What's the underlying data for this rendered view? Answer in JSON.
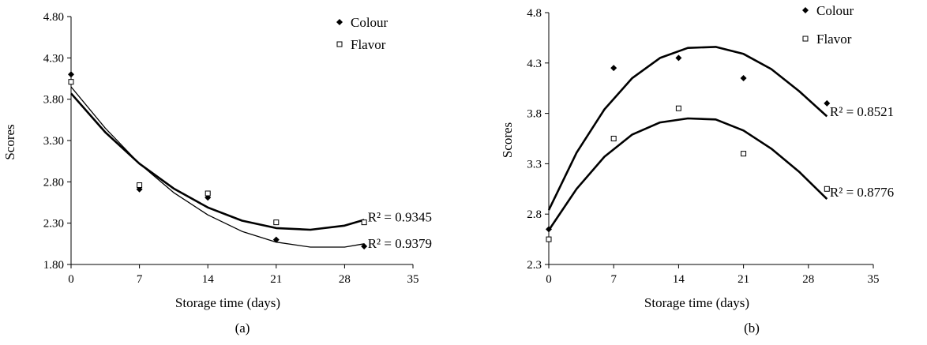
{
  "chart_data": [
    {
      "type": "scatter",
      "panel_label": "(a)",
      "xlabel": "Storage time (days)",
      "ylabel": "Scores",
      "xlim": [
        0,
        35
      ],
      "ylim": [
        1.8,
        4.8
      ],
      "xticks": [
        "0",
        "7",
        "14",
        "21",
        "28",
        "35"
      ],
      "yticks": [
        "1.80",
        "2.30",
        "2.80",
        "3.30",
        "3.80",
        "4.30",
        "4.80"
      ],
      "legend_position": "top-right",
      "grid": false,
      "series": [
        {
          "name": "Colour",
          "marker": "diamond",
          "x": [
            0,
            7,
            14,
            21,
            30
          ],
          "y": [
            4.1,
            2.71,
            2.61,
            2.1,
            2.02
          ],
          "fit": {
            "type": "polynomial",
            "x": [
              0,
              3.5,
              7,
              10.5,
              14,
              17.5,
              21,
              24.5,
              28,
              30
            ],
            "y": [
              3.95,
              3.45,
              3.02,
              2.67,
              2.4,
              2.2,
              2.07,
              2.01,
              2.01,
              2.05
            ]
          }
        },
        {
          "name": "Flavor",
          "marker": "square",
          "x": [
            0,
            7,
            14,
            21,
            30
          ],
          "y": [
            4.01,
            2.76,
            2.66,
            2.31,
            2.31
          ],
          "fit": {
            "type": "polynomial",
            "x": [
              0,
              3.5,
              7,
              10.5,
              14,
              17.5,
              21,
              24.5,
              28,
              30
            ],
            "y": [
              3.87,
              3.4,
              3.02,
              2.72,
              2.49,
              2.33,
              2.24,
              2.22,
              2.27,
              2.34
            ]
          }
        }
      ],
      "annotations": [
        {
          "text": "R² = 0.9345",
          "data_x": 31.5,
          "data_y": 2.38
        },
        {
          "text": "R² = 0.9379",
          "data_x": 31.5,
          "data_y": 2.06
        }
      ]
    },
    {
      "type": "scatter",
      "panel_label": "(b)",
      "xlabel": "Storage time (days)",
      "ylabel": "Scores",
      "xlim": [
        0,
        35
      ],
      "ylim": [
        2.3,
        4.8
      ],
      "xticks": [
        "0",
        "7",
        "14",
        "21",
        "28",
        "35"
      ],
      "yticks": [
        "2.3",
        "2.8",
        "3.3",
        "3.8",
        "4.3",
        "4.8"
      ],
      "legend_position": "top-right",
      "grid": false,
      "series": [
        {
          "name": "Colour",
          "marker": "diamond",
          "x": [
            0,
            7,
            14,
            21,
            30
          ],
          "y": [
            2.65,
            4.25,
            4.35,
            4.15,
            3.9
          ],
          "fit": {
            "type": "polynomial",
            "x": [
              0,
              3,
              6,
              9,
              12,
              15,
              18,
              21,
              24,
              27,
              30
            ],
            "y": [
              2.84,
              3.41,
              3.84,
              4.15,
              4.35,
              4.45,
              4.46,
              4.39,
              4.24,
              4.02,
              3.77
            ]
          }
        },
        {
          "name": "Flavor",
          "marker": "square",
          "x": [
            0,
            7,
            14,
            21,
            30
          ],
          "y": [
            2.55,
            3.55,
            3.85,
            3.4,
            3.05
          ],
          "fit": {
            "type": "polynomial",
            "x": [
              0,
              3,
              6,
              9,
              12,
              15,
              18,
              21,
              24,
              27,
              30
            ],
            "y": [
              2.64,
              3.05,
              3.37,
              3.59,
              3.71,
              3.75,
              3.74,
              3.63,
              3.45,
              3.22,
              2.95
            ]
          }
        }
      ],
      "annotations": [
        {
          "text": "R² = 0.8521",
          "data_x": 31.5,
          "data_y": 3.82
        },
        {
          "text": "R² = 0.8776",
          "data_x": 31.5,
          "data_y": 3.02
        }
      ]
    }
  ]
}
